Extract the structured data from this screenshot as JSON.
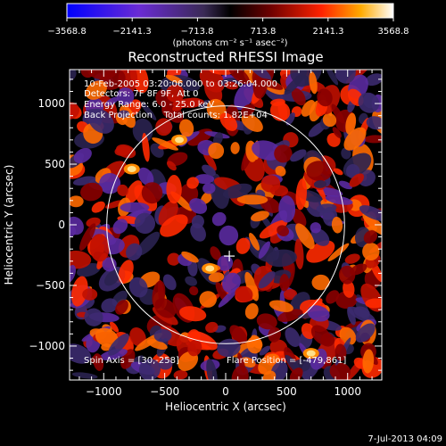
{
  "colorbar": {
    "tick_labels": [
      "−3568.8",
      "−2141.3",
      "−713.8",
      "713.8",
      "2141.3",
      "3568.8"
    ],
    "units": "(photons cm⁻² s⁻¹ asec⁻²)",
    "colors": [
      "#0000ff",
      "#6a2bd4",
      "#3a2a55",
      "#000000",
      "#6a0000",
      "#ff2200",
      "#ffaa00",
      "#ffffff"
    ]
  },
  "chart_data": {
    "type": "heatmap",
    "title": "Reconstructed RHESSI Image",
    "xlabel": "Heliocentric X (arcsec)",
    "ylabel": "Heliocentric Y (arcsec)",
    "xlim": [
      -1280,
      1280
    ],
    "ylim": [
      -1280,
      1280
    ],
    "xticks": [
      -1000,
      -500,
      0,
      500,
      1000
    ],
    "yticks": [
      -1000,
      -500,
      0,
      500,
      1000
    ],
    "xtick_labels": [
      "−1000",
      "−500",
      "0",
      "500",
      "1000"
    ],
    "ytick_labels": [
      "−1000",
      "−500",
      "0",
      "500",
      "1000"
    ],
    "zlim": [
      -3568.8,
      3568.8
    ],
    "solar_disk": {
      "center": [
        0,
        0
      ],
      "radius": 975
    },
    "center_marker": [
      30,
      -258
    ],
    "bright_spots": [
      {
        "x": -380,
        "y": 700
      },
      {
        "x": -770,
        "y": 460
      },
      {
        "x": -130,
        "y": -360
      },
      {
        "x": 700,
        "y": -1060
      }
    ]
  },
  "annotations": {
    "time_range": "10-Feb-2005 03:20:06.000 to 03:26:04.000",
    "detectors": "Detectors: 7F 8F 9F, Att 0",
    "energy": "Energy Range: 6.0 - 25.0 keV",
    "method": "Back Projection    Total counts: 1.82E+04",
    "spin_axis": "Spin Axis = [30,-258]",
    "flare_position": "Flare Position = [-479,861]"
  },
  "footer": {
    "date": "7-Jul-2013 04:09"
  }
}
